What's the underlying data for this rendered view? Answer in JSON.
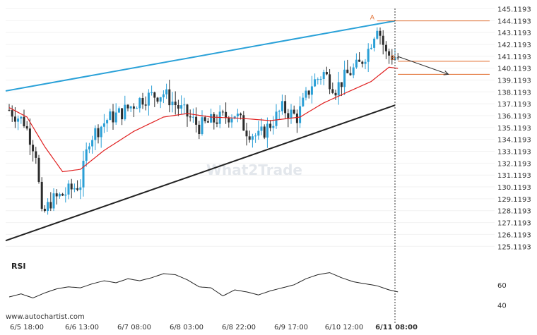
{
  "chart_data": {
    "type": "candlestick",
    "y_ticks": [
      "145.1193",
      "144.1193",
      "143.1193",
      "142.1193",
      "141.1193",
      "140.1193",
      "139.1193",
      "138.1193",
      "137.1193",
      "136.1193",
      "135.1193",
      "134.1193",
      "133.1193",
      "132.1193",
      "131.1193",
      "130.1193",
      "129.1193",
      "128.1193",
      "127.1193",
      "126.1193",
      "125.1193"
    ],
    "y_tick_values": [
      145.1193,
      144.1193,
      143.1193,
      142.1193,
      141.1193,
      140.1193,
      139.1193,
      138.1193,
      137.1193,
      136.1193,
      135.1193,
      134.1193,
      133.1193,
      132.1193,
      131.1193,
      130.1193,
      129.1193,
      128.1193,
      127.1193,
      126.1193,
      125.1193
    ],
    "ylim": [
      124.6,
      145.5
    ],
    "x_ticks": [
      "6/5 18:00",
      "6/6 13:00",
      "6/7 08:00",
      "6/8 03:00",
      "6/8 22:00",
      "6/9 17:00",
      "6/10 12:00",
      "6/11 08:00"
    ],
    "highlighted_x_tick": "6/11 08:00",
    "candle_count": 132,
    "price_path": [
      {
        "i": 0,
        "v": 136.6
      },
      {
        "i": 5,
        "v": 135.6
      },
      {
        "i": 9,
        "v": 133.0
      },
      {
        "i": 11,
        "v": 127.6
      },
      {
        "i": 14,
        "v": 128.9
      },
      {
        "i": 19,
        "v": 129.6
      },
      {
        "i": 24,
        "v": 130.4
      },
      {
        "i": 27,
        "v": 134.2
      },
      {
        "i": 33,
        "v": 135.8
      },
      {
        "i": 38,
        "v": 136.4
      },
      {
        "i": 45,
        "v": 137.6
      },
      {
        "i": 52,
        "v": 138.0
      },
      {
        "i": 58,
        "v": 136.6
      },
      {
        "i": 64,
        "v": 135.2
      },
      {
        "i": 70,
        "v": 135.8
      },
      {
        "i": 76,
        "v": 136.3
      },
      {
        "i": 80,
        "v": 134.9
      },
      {
        "i": 84,
        "v": 134.3
      },
      {
        "i": 88,
        "v": 135.4
      },
      {
        "i": 92,
        "v": 136.7
      },
      {
        "i": 97,
        "v": 136.0
      },
      {
        "i": 102,
        "v": 138.8
      },
      {
        "i": 106,
        "v": 139.7
      },
      {
        "i": 110,
        "v": 138.4
      },
      {
        "i": 114,
        "v": 139.6
      },
      {
        "i": 118,
        "v": 140.4
      },
      {
        "i": 121,
        "v": 141.7
      },
      {
        "i": 124,
        "v": 143.8
      },
      {
        "i": 127,
        "v": 141.3
      },
      {
        "i": 131,
        "v": 141.0
      }
    ],
    "moving_average": [
      {
        "i": 0,
        "v": 136.8
      },
      {
        "i": 6,
        "v": 136.0
      },
      {
        "i": 12,
        "v": 133.5
      },
      {
        "i": 18,
        "v": 131.4
      },
      {
        "i": 24,
        "v": 131.6
      },
      {
        "i": 32,
        "v": 133.2
      },
      {
        "i": 42,
        "v": 134.8
      },
      {
        "i": 52,
        "v": 136.0
      },
      {
        "i": 60,
        "v": 136.3
      },
      {
        "i": 68,
        "v": 136.0
      },
      {
        "i": 78,
        "v": 135.9
      },
      {
        "i": 88,
        "v": 135.7
      },
      {
        "i": 98,
        "v": 136.0
      },
      {
        "i": 106,
        "v": 137.2
      },
      {
        "i": 114,
        "v": 138.1
      },
      {
        "i": 122,
        "v": 139.0
      },
      {
        "i": 128,
        "v": 140.2
      },
      {
        "i": 131,
        "v": 140.1
      }
    ],
    "pattern_lines": [
      {
        "name": "resistance",
        "color": "#2aa1d8",
        "from": {
          "i": -2,
          "v": 138.2
        },
        "to": {
          "i": 130,
          "v": 144.1
        }
      },
      {
        "name": "support",
        "color": "#222222",
        "from": {
          "i": -2,
          "v": 125.6
        },
        "to": {
          "i": 130,
          "v": 137.0
        }
      }
    ],
    "level_lines": [
      {
        "name": "level-a",
        "value": 144.1,
        "color": "#e06a2a",
        "label": "A",
        "from_i": 124
      },
      {
        "name": "level-b",
        "value": 140.7,
        "color": "#e06a2a",
        "label": "B",
        "from_i": 131
      },
      {
        "name": "level-target",
        "value": 139.6,
        "color": "#e06a2a",
        "label": "",
        "from_i": 131
      }
    ],
    "forecast_arrow": {
      "from": {
        "i": 131,
        "v": 141.1
      },
      "to": {
        "i": 148,
        "v": 139.6
      },
      "color": "#333333"
    },
    "highlight_index": 130,
    "colors": {
      "up": "#2a9fd6",
      "down": "#2c2c2c",
      "ma": "#e02020",
      "level": "#e06a2a"
    },
    "rsi": {
      "label": "RSI",
      "y_ticks": [
        "60",
        "40"
      ],
      "y_tick_values": [
        60,
        40
      ],
      "ylim": [
        32,
        78
      ],
      "path": [
        {
          "i": 0,
          "v": 48
        },
        {
          "i": 4,
          "v": 51
        },
        {
          "i": 8,
          "v": 47
        },
        {
          "i": 12,
          "v": 52
        },
        {
          "i": 16,
          "v": 56
        },
        {
          "i": 20,
          "v": 58
        },
        {
          "i": 24,
          "v": 57
        },
        {
          "i": 28,
          "v": 61
        },
        {
          "i": 32,
          "v": 64
        },
        {
          "i": 36,
          "v": 62
        },
        {
          "i": 40,
          "v": 66
        },
        {
          "i": 44,
          "v": 64
        },
        {
          "i": 48,
          "v": 67
        },
        {
          "i": 52,
          "v": 71
        },
        {
          "i": 56,
          "v": 70
        },
        {
          "i": 60,
          "v": 65
        },
        {
          "i": 64,
          "v": 58
        },
        {
          "i": 68,
          "v": 57
        },
        {
          "i": 72,
          "v": 49
        },
        {
          "i": 76,
          "v": 55
        },
        {
          "i": 80,
          "v": 53
        },
        {
          "i": 84,
          "v": 50
        },
        {
          "i": 88,
          "v": 54
        },
        {
          "i": 92,
          "v": 57
        },
        {
          "i": 96,
          "v": 60
        },
        {
          "i": 100,
          "v": 66
        },
        {
          "i": 104,
          "v": 70
        },
        {
          "i": 108,
          "v": 72
        },
        {
          "i": 112,
          "v": 67
        },
        {
          "i": 116,
          "v": 63
        },
        {
          "i": 120,
          "v": 61
        },
        {
          "i": 124,
          "v": 59
        },
        {
          "i": 128,
          "v": 55
        },
        {
          "i": 131,
          "v": 53
        }
      ]
    }
  },
  "watermark": "What2Trade",
  "footer": "www.autochartist.com"
}
